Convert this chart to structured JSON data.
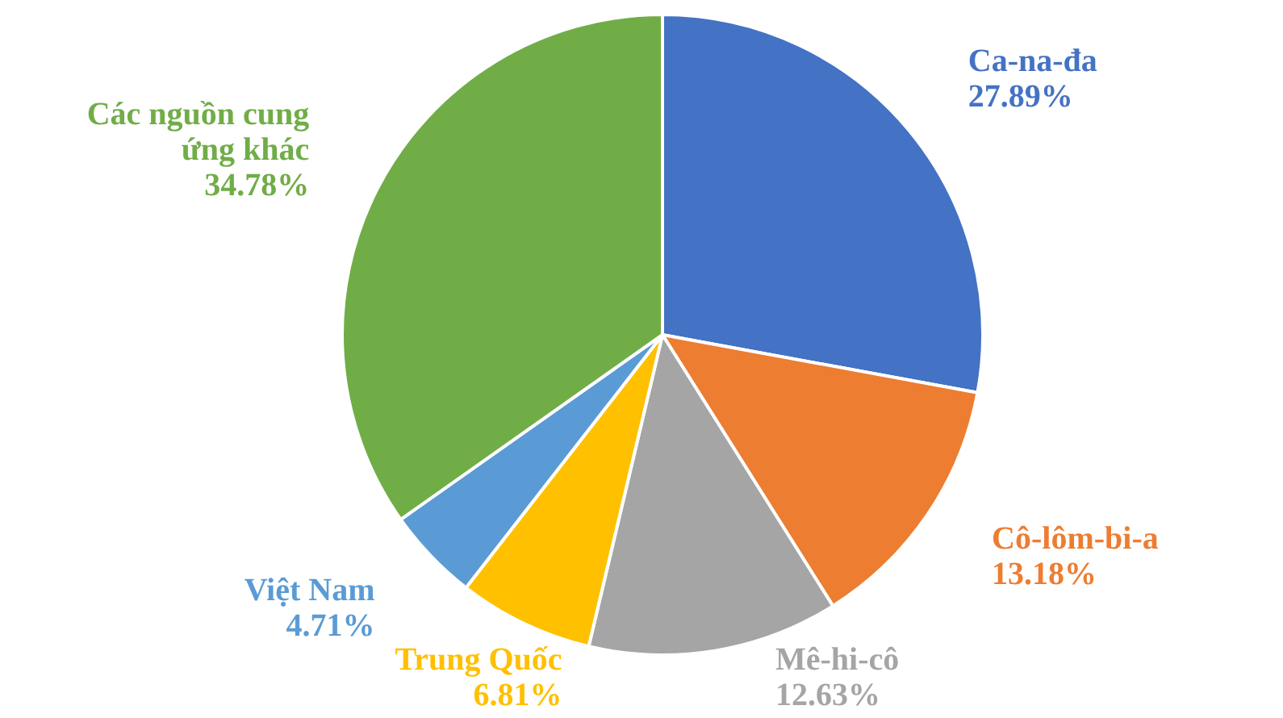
{
  "chart_data": {
    "type": "pie",
    "categories": [
      "Ca-na-đa",
      "Cô-lôm-bi-a",
      "Mê-hi-cô",
      "Trung Quốc",
      "Việt Nam",
      "Các nguồn cung ứng khác"
    ],
    "values": [
      27.89,
      13.18,
      12.63,
      6.81,
      4.71,
      34.78
    ],
    "colors": [
      "#4472c4",
      "#ed7d31",
      "#a5a5a5",
      "#ffc000",
      "#5b9bd5",
      "#70ad47"
    ],
    "value_labels": [
      "27.89%",
      "13.18%",
      "12.63%",
      "6.81%",
      "4.71%",
      "34.78%"
    ],
    "legend": false
  }
}
